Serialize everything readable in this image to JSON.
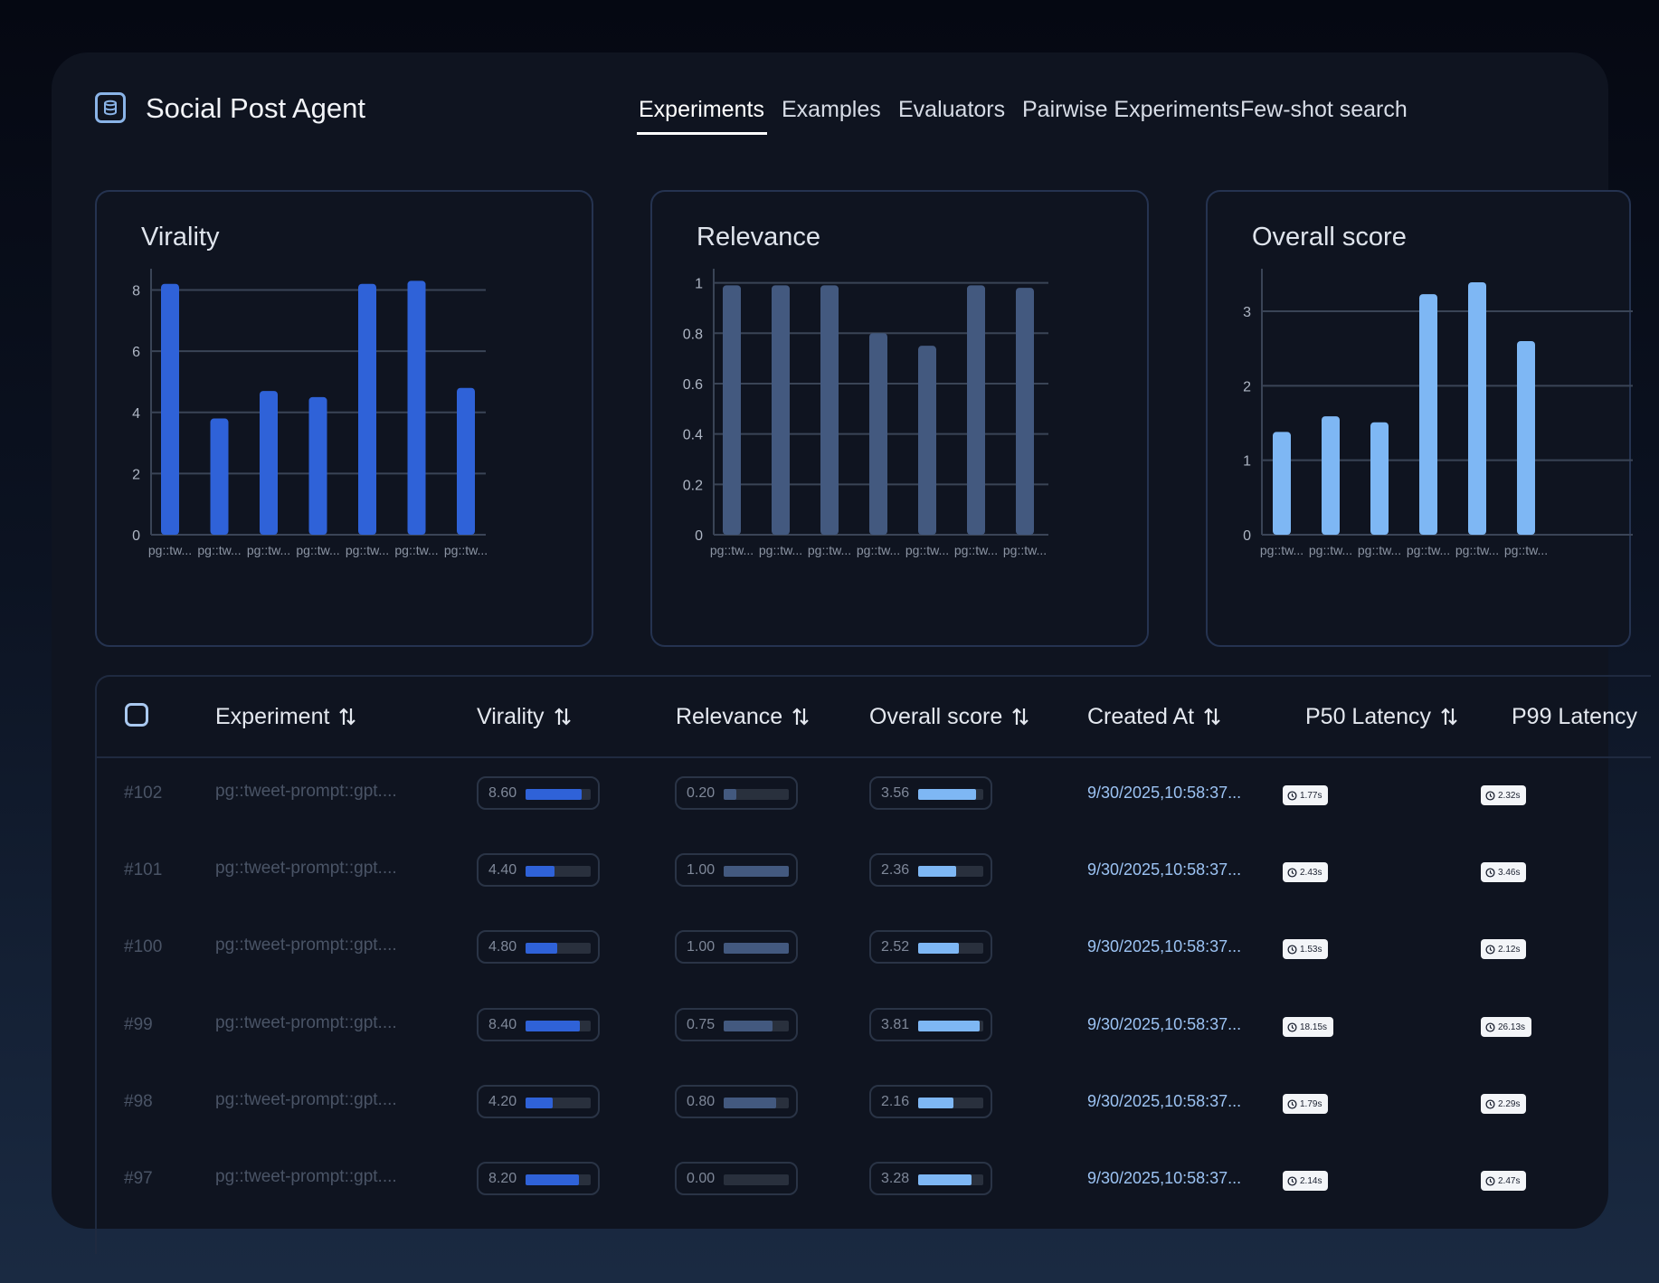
{
  "header": {
    "app_title": "Social Post Agent",
    "tabs": [
      "Experiments",
      "Examples",
      "Evaluators",
      "Pairwise Experiments",
      "Few-shot search"
    ],
    "active_tab": "Experiments"
  },
  "colors": {
    "virality": "#2f62d8",
    "relevance": "#43597f",
    "overall": "#7eb7f4",
    "date_text": "#9cc3f3"
  },
  "chart_data": [
    {
      "type": "bar",
      "title": "Virality",
      "categories": [
        "pg::tw...",
        "pg::tw...",
        "pg::tw...",
        "pg::tw...",
        "pg::tw...",
        "pg::tw...",
        "pg::tw..."
      ],
      "values": [
        8.2,
        3.8,
        4.7,
        4.5,
        8.2,
        8.3,
        4.8
      ],
      "yticks": [
        "0",
        "2",
        "4",
        "6",
        "8"
      ],
      "ylim": [
        0,
        8.4
      ],
      "grid": true
    },
    {
      "type": "bar",
      "title": "Relevance",
      "categories": [
        "pg::tw...",
        "pg::tw...",
        "pg::tw...",
        "pg::tw...",
        "pg::tw...",
        "pg::tw...",
        "pg::tw..."
      ],
      "values": [
        0.99,
        0.99,
        0.99,
        0.8,
        0.75,
        0.99,
        0.98
      ],
      "yticks": [
        "0",
        "0.2",
        "0.4",
        "0.6",
        "0.8",
        "1"
      ],
      "ylim": [
        0,
        1.02
      ],
      "grid": true
    },
    {
      "type": "bar",
      "title": "Overall score",
      "categories": [
        "pg::tw...",
        "pg::tw...",
        "pg::tw...",
        "pg::tw...",
        "pg::tw...",
        "pg::tw..."
      ],
      "values": [
        1.38,
        1.59,
        1.51,
        3.23,
        3.39,
        2.6
      ],
      "yticks": [
        "0",
        "1",
        "2",
        "3"
      ],
      "ylim": [
        0,
        3.45
      ],
      "grid": true
    }
  ],
  "table": {
    "columns": [
      "Experiment",
      "Virality",
      "Relevance",
      "Overall score",
      "Created At",
      "P50 Latency",
      "P99 Latency"
    ],
    "rows": [
      {
        "id": "#102",
        "experiment": "pg::tweet-prompt::gpt....",
        "virality": "8.60",
        "virality_frac": 0.86,
        "relevance": "0.20",
        "relevance_frac": 0.2,
        "overall": "3.56",
        "overall_frac": 0.89,
        "created": "9/30/2025,10:58:37...",
        "p50": "1.77s",
        "p99": "2.32s"
      },
      {
        "id": "#101",
        "experiment": "pg::tweet-prompt::gpt....",
        "virality": "4.40",
        "virality_frac": 0.44,
        "relevance": "1.00",
        "relevance_frac": 1.0,
        "overall": "2.36",
        "overall_frac": 0.59,
        "created": "9/30/2025,10:58:37...",
        "p50": "2.43s",
        "p99": "3.46s"
      },
      {
        "id": "#100",
        "experiment": "pg::tweet-prompt::gpt....",
        "virality": "4.80",
        "virality_frac": 0.48,
        "relevance": "1.00",
        "relevance_frac": 1.0,
        "overall": "2.52",
        "overall_frac": 0.63,
        "created": "9/30/2025,10:58:37...",
        "p50": "1.53s",
        "p99": "2.12s"
      },
      {
        "id": "#99",
        "experiment": "pg::tweet-prompt::gpt....",
        "virality": "8.40",
        "virality_frac": 0.84,
        "relevance": "0.75",
        "relevance_frac": 0.75,
        "overall": "3.81",
        "overall_frac": 0.95,
        "created": "9/30/2025,10:58:37...",
        "p50": "18.15s",
        "p99": "26.13s"
      },
      {
        "id": "#98",
        "experiment": "pg::tweet-prompt::gpt....",
        "virality": "4.20",
        "virality_frac": 0.42,
        "relevance": "0.80",
        "relevance_frac": 0.8,
        "overall": "2.16",
        "overall_frac": 0.54,
        "created": "9/30/2025,10:58:37...",
        "p50": "1.79s",
        "p99": "2.29s"
      },
      {
        "id": "#97",
        "experiment": "pg::tweet-prompt::gpt....",
        "virality": "8.20",
        "virality_frac": 0.82,
        "relevance": "0.00",
        "relevance_frac": 0.0,
        "overall": "3.28",
        "overall_frac": 0.82,
        "created": "9/30/2025,10:58:37...",
        "p50": "2.14s",
        "p99": "2.47s"
      }
    ]
  },
  "icons": {
    "logo": "database-icon",
    "sort": "sort-arrows-icon",
    "latency": "clock-icon"
  }
}
